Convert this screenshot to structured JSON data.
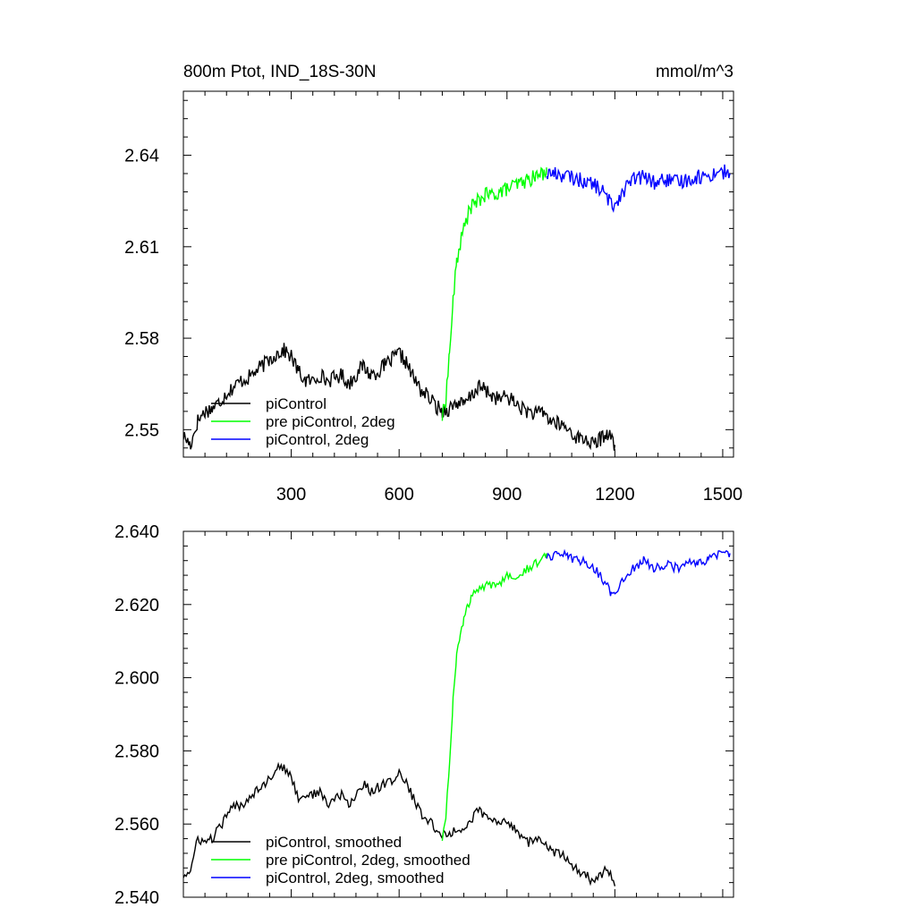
{
  "chart_data": [
    {
      "type": "line",
      "title": "800m Ptot, IND_18S-30N",
      "units": "mmol/m^3",
      "xlim": [
        0,
        1530
      ],
      "ylim": [
        2.541,
        2.661
      ],
      "xticks": [
        300,
        600,
        900,
        1200,
        1500
      ],
      "yticks": [
        2.55,
        2.58,
        2.61,
        2.64
      ],
      "ytick_labels": [
        "2.55",
        "2.58",
        "2.61",
        "2.64"
      ],
      "legend_position": "lower-left",
      "series": [
        {
          "name": "piControl",
          "color": "#000000",
          "x": [
            0,
            20,
            40,
            60,
            80,
            100,
            120,
            140,
            160,
            180,
            200,
            220,
            240,
            260,
            280,
            300,
            320,
            340,
            360,
            380,
            400,
            420,
            440,
            460,
            480,
            500,
            520,
            540,
            560,
            580,
            600,
            620,
            640,
            660,
            680,
            700,
            720,
            740,
            760,
            780,
            800,
            820,
            840,
            860,
            880,
            900,
            920,
            940,
            960,
            980,
            1000,
            1020,
            1040,
            1060,
            1080,
            1100,
            1120,
            1140,
            1160,
            1180,
            1200
          ],
          "y": [
            2.548,
            2.545,
            2.553,
            2.556,
            2.557,
            2.559,
            2.562,
            2.564,
            2.566,
            2.567,
            2.569,
            2.571,
            2.573,
            2.575,
            2.576,
            2.574,
            2.569,
            2.566,
            2.566,
            2.568,
            2.566,
            2.567,
            2.568,
            2.565,
            2.568,
            2.571,
            2.568,
            2.569,
            2.571,
            2.573,
            2.575,
            2.572,
            2.567,
            2.563,
            2.561,
            2.558,
            2.556,
            2.557,
            2.559,
            2.558,
            2.561,
            2.564,
            2.563,
            2.561,
            2.56,
            2.561,
            2.559,
            2.557,
            2.556,
            2.555,
            2.556,
            2.553,
            2.552,
            2.551,
            2.549,
            2.547,
            2.547,
            2.545,
            2.547,
            2.549,
            2.545
          ]
        },
        {
          "name": "pre piControl, 2deg",
          "color": "#00ff00",
          "x": [
            720,
            730,
            740,
            750,
            760,
            770,
            780,
            790,
            800,
            820,
            840,
            860,
            880,
            900,
            920,
            940,
            960,
            980,
            1000,
            1010
          ],
          "y": [
            2.554,
            2.56,
            2.575,
            2.592,
            2.605,
            2.611,
            2.616,
            2.62,
            2.623,
            2.625,
            2.627,
            2.627,
            2.628,
            2.629,
            2.63,
            2.631,
            2.632,
            2.633,
            2.634,
            2.636
          ]
        },
        {
          "name": "piControl, 2deg",
          "color": "#0000ff",
          "x": [
            1010,
            1040,
            1070,
            1100,
            1130,
            1160,
            1190,
            1200,
            1220,
            1250,
            1280,
            1310,
            1340,
            1370,
            1400,
            1430,
            1460,
            1490,
            1520
          ],
          "y": [
            2.634,
            2.634,
            2.633,
            2.632,
            2.631,
            2.629,
            2.624,
            2.624,
            2.628,
            2.632,
            2.633,
            2.631,
            2.632,
            2.631,
            2.632,
            2.633,
            2.633,
            2.635,
            2.634
          ]
        }
      ]
    },
    {
      "type": "line",
      "xlim": [
        0,
        1530
      ],
      "ylim": [
        2.54,
        2.64
      ],
      "xticks": [
        300,
        600,
        900,
        1200,
        1500
      ],
      "yticks": [
        2.54,
        2.56,
        2.58,
        2.6,
        2.62,
        2.64
      ],
      "ytick_labels": [
        "2.540",
        "2.560",
        "2.580",
        "2.600",
        "2.620",
        "2.640"
      ],
      "legend_position": "lower-left",
      "series": [
        {
          "name": "piControl, smoothed",
          "color": "#000000",
          "x": [
            0,
            20,
            40,
            60,
            80,
            100,
            120,
            140,
            160,
            180,
            200,
            220,
            240,
            260,
            280,
            300,
            320,
            340,
            360,
            380,
            400,
            420,
            440,
            460,
            480,
            500,
            520,
            540,
            560,
            580,
            600,
            620,
            640,
            660,
            680,
            700,
            720,
            740,
            760,
            780,
            800,
            820,
            840,
            860,
            880,
            900,
            920,
            940,
            960,
            980,
            1000,
            1020,
            1040,
            1060,
            1080,
            1100,
            1120,
            1140,
            1160,
            1180,
            1200
          ],
          "y": [
            2.546,
            2.547,
            2.556,
            2.555,
            2.556,
            2.559,
            2.562,
            2.565,
            2.565,
            2.567,
            2.569,
            2.571,
            2.572,
            2.576,
            2.575,
            2.573,
            2.567,
            2.568,
            2.568,
            2.569,
            2.565,
            2.567,
            2.568,
            2.565,
            2.568,
            2.571,
            2.569,
            2.57,
            2.571,
            2.572,
            2.574,
            2.571,
            2.567,
            2.563,
            2.561,
            2.559,
            2.557,
            2.557,
            2.559,
            2.558,
            2.561,
            2.564,
            2.562,
            2.561,
            2.56,
            2.561,
            2.559,
            2.557,
            2.555,
            2.556,
            2.555,
            2.553,
            2.552,
            2.551,
            2.549,
            2.547,
            2.546,
            2.544,
            2.546,
            2.548,
            2.543
          ]
        },
        {
          "name": "pre piControl, 2deg, smoothed",
          "color": "#00ff00",
          "x": [
            720,
            730,
            740,
            750,
            760,
            770,
            780,
            790,
            800,
            820,
            840,
            860,
            880,
            900,
            920,
            940,
            960,
            980,
            1000,
            1010
          ],
          "y": [
            2.556,
            2.562,
            2.577,
            2.594,
            2.606,
            2.611,
            2.616,
            2.619,
            2.622,
            2.624,
            2.625,
            2.625,
            2.626,
            2.628,
            2.628,
            2.629,
            2.63,
            2.631,
            2.633,
            2.634
          ]
        },
        {
          "name": "piControl, 2deg, smoothed",
          "color": "#0000ff",
          "x": [
            1010,
            1040,
            1070,
            1100,
            1130,
            1160,
            1190,
            1200,
            1220,
            1250,
            1280,
            1310,
            1340,
            1370,
            1400,
            1430,
            1460,
            1490,
            1520
          ],
          "y": [
            2.633,
            2.634,
            2.633,
            2.632,
            2.631,
            2.628,
            2.623,
            2.623,
            2.627,
            2.63,
            2.632,
            2.63,
            2.631,
            2.63,
            2.631,
            2.632,
            2.632,
            2.634,
            2.634
          ]
        }
      ]
    }
  ]
}
